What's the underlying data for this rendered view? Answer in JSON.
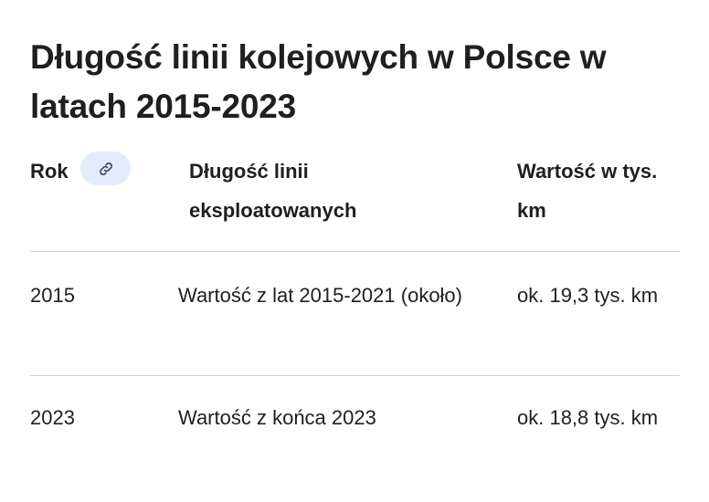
{
  "title": "Długość linii kolejowych w Polsce w latach 2015-2023",
  "table": {
    "headers": [
      "Rok",
      "Długość linii eksploatowanych",
      "Wartość w tys. km"
    ],
    "link_icon": "link-icon",
    "rows": [
      [
        "2015",
        "Wartość z lat 2015-2021 (około)",
        "ok. 19,3 tys. km"
      ],
      [
        "2023",
        "Wartość z końca 2023",
        "ok. 18,8 tys. km"
      ]
    ]
  }
}
